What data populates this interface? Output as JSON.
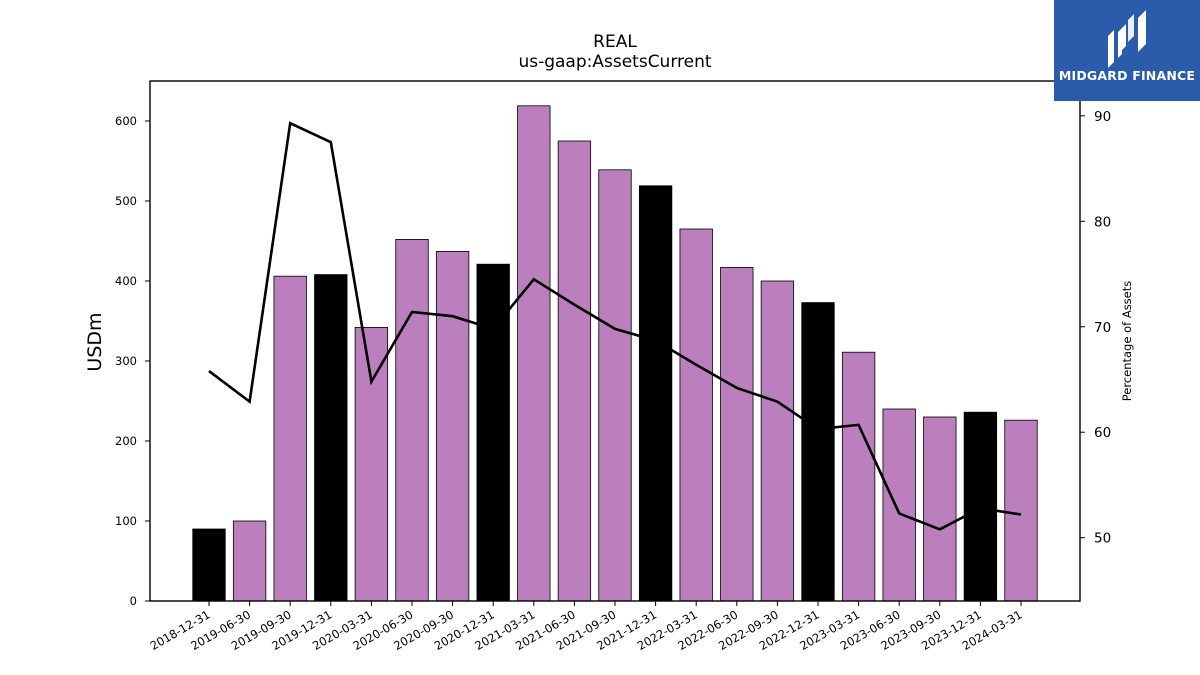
{
  "chart_data": {
    "type": "bar",
    "title": "REAL",
    "subtitle": "us-gaap:AssetsCurrent",
    "ylabel": "USDm",
    "y2label": "Percentage of Assets",
    "ylim": [
      0,
      650
    ],
    "y2lim": [
      44,
      93.3
    ],
    "yticks": [
      0,
      100,
      200,
      300,
      400,
      500,
      600
    ],
    "y2ticks": [
      50,
      60,
      70,
      80,
      90
    ],
    "grid": false,
    "categories": [
      "2018-12-31",
      "2019-06-30",
      "2019-09-30",
      "2019-12-31",
      "2020-03-31",
      "2020-06-30",
      "2020-09-30",
      "2020-12-31",
      "2021-03-31",
      "2021-06-30",
      "2021-09-30",
      "2021-12-31",
      "2022-03-31",
      "2022-06-30",
      "2022-09-30",
      "2022-12-31",
      "2023-03-31",
      "2023-06-30",
      "2023-09-30",
      "2023-12-31",
      "2024-03-31"
    ],
    "series": [
      {
        "kind": "bar",
        "axis": "left",
        "values": [
          90,
          100,
          406,
          408,
          342,
          452,
          437,
          421,
          619,
          575,
          539,
          519,
          465,
          417,
          400,
          373,
          311,
          240,
          230,
          236,
          226
        ],
        "colors": [
          "#000000",
          "#bb7fbd",
          "#bb7fbd",
          "#000000",
          "#bb7fbd",
          "#bb7fbd",
          "#bb7fbd",
          "#000000",
          "#bb7fbd",
          "#bb7fbd",
          "#bb7fbd",
          "#000000",
          "#bb7fbd",
          "#bb7fbd",
          "#bb7fbd",
          "#000000",
          "#bb7fbd",
          "#bb7fbd",
          "#bb7fbd",
          "#000000",
          "#bb7fbd"
        ]
      },
      {
        "kind": "line",
        "axis": "right",
        "color": "#000000",
        "values": [
          65.8,
          62.9,
          89.3,
          87.5,
          64.8,
          71.4,
          71.0,
          69.8,
          74.5,
          72.1,
          69.8,
          68.7,
          66.4,
          64.2,
          62.9,
          60.3,
          60.7,
          52.3,
          50.8,
          52.8,
          52.2
        ]
      }
    ]
  },
  "logo": {
    "text": "MIDGARD FINANCE",
    "background": "#2b5bab",
    "icon": "midgard-logo-icon"
  }
}
